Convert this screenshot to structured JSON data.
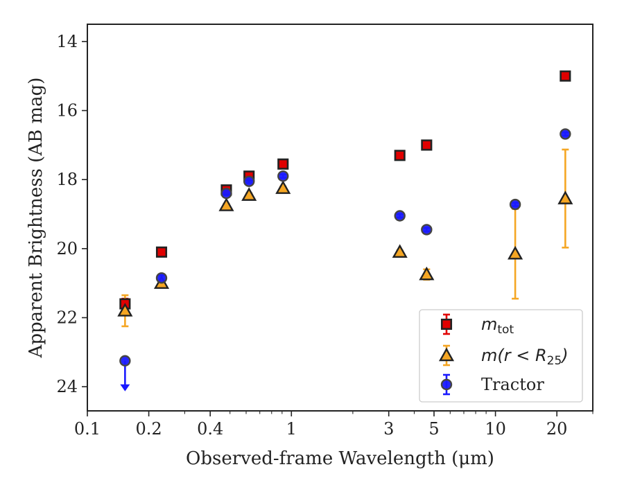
{
  "chart_data": {
    "type": "scatter",
    "xlabel": "Observed-frame Wavelength (μm)",
    "ylabel": "Apparent Brightness (AB mag)",
    "xscale": "log",
    "xlim": [
      0.1,
      30
    ],
    "ylim": [
      24.7,
      13.5
    ],
    "y_inverted": true,
    "x_ticks": [
      {
        "value": 0.1,
        "label": "0.1"
      },
      {
        "value": 0.2,
        "label": "0.2"
      },
      {
        "value": 0.4,
        "label": "0.4"
      },
      {
        "value": 1,
        "label": "1"
      },
      {
        "value": 3,
        "label": "3"
      },
      {
        "value": 5,
        "label": "5"
      },
      {
        "value": 10,
        "label": "10"
      },
      {
        "value": 20,
        "label": "20"
      }
    ],
    "y_ticks": [
      {
        "value": 14,
        "label": "14"
      },
      {
        "value": 16,
        "label": "16"
      },
      {
        "value": 18,
        "label": "18"
      },
      {
        "value": 20,
        "label": "20"
      },
      {
        "value": 22,
        "label": "22"
      },
      {
        "value": 24,
        "label": "24"
      }
    ],
    "legend": {
      "placement": "lower-right",
      "entries": [
        {
          "label": "m_tot",
          "main": "m",
          "sub": "tot"
        },
        {
          "label": "m(r < R_25)",
          "main": "m(r < R",
          "sub": "25",
          "tail": ")"
        },
        {
          "label": "Tractor",
          "main": "Tractor"
        }
      ]
    },
    "series": [
      {
        "name": "m_tot",
        "marker": "square",
        "color": "#e00000",
        "edge": "#222222",
        "points": [
          {
            "x": 0.153,
            "y": 21.6,
            "err": 0.15
          },
          {
            "x": 0.231,
            "y": 20.1,
            "err": 0.05
          },
          {
            "x": 0.48,
            "y": 18.3,
            "err": 0.05
          },
          {
            "x": 0.62,
            "y": 17.9,
            "err": 0.05
          },
          {
            "x": 0.91,
            "y": 17.55,
            "err": 0.05
          },
          {
            "x": 3.4,
            "y": 17.3,
            "err": 0.05
          },
          {
            "x": 4.6,
            "y": 17.0,
            "err": 0.05
          },
          {
            "x": 22.0,
            "y": 15.0,
            "err": 0.05
          }
        ]
      },
      {
        "name": "m(r < R_25)",
        "marker": "triangle",
        "color": "#f5a623",
        "edge": "#222222",
        "points": [
          {
            "x": 0.153,
            "y": 21.8,
            "err": 0.45
          },
          {
            "x": 0.231,
            "y": 21.0,
            "err": 0.05
          },
          {
            "x": 0.48,
            "y": 18.75,
            "err": 0.05
          },
          {
            "x": 0.62,
            "y": 18.45,
            "err": 0.05
          },
          {
            "x": 0.91,
            "y": 18.25,
            "err": 0.05
          },
          {
            "x": 3.4,
            "y": 20.1,
            "err": 0.05
          },
          {
            "x": 4.6,
            "y": 20.75,
            "err": 0.15
          },
          {
            "x": 12.5,
            "y": 20.15,
            "err": 1.3
          },
          {
            "x": 22.0,
            "y": 18.55,
            "err": 1.42
          }
        ]
      },
      {
        "name": "Tractor",
        "marker": "circle",
        "color": "#1a1aff",
        "edge": "#444444",
        "points": [
          {
            "x": 0.153,
            "y": 23.25,
            "upper_limit": true
          },
          {
            "x": 0.231,
            "y": 20.85,
            "err": 0.08
          },
          {
            "x": 0.48,
            "y": 18.4,
            "err": 0.05
          },
          {
            "x": 0.62,
            "y": 18.05,
            "err": 0.05
          },
          {
            "x": 0.91,
            "y": 17.9,
            "err": 0.05
          },
          {
            "x": 3.4,
            "y": 19.05,
            "err": 0.05
          },
          {
            "x": 4.6,
            "y": 19.45,
            "err": 0.05
          },
          {
            "x": 12.5,
            "y": 18.72,
            "err": 0.05
          },
          {
            "x": 22.0,
            "y": 16.68,
            "err": 0.05
          }
        ]
      }
    ]
  }
}
